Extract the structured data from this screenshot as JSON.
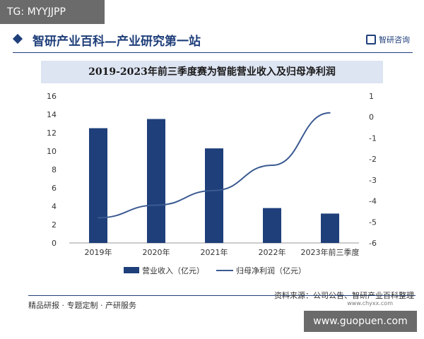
{
  "badge": {
    "tg": "TG: MYYJJPP"
  },
  "header": {
    "title": "智研产业百科—产业研究第一站",
    "brand": "智研咨询"
  },
  "colors": {
    "bar": "#1f3f7a",
    "line": "#3b5a91",
    "accent": "#1f3f7a"
  },
  "chart_data": {
    "type": "bar",
    "title": "2019-2023年前三季度赛为智能营业收入及归母净利润",
    "categories": [
      "2019年",
      "2020年",
      "2021年",
      "2022年",
      "2023年前三季度"
    ],
    "series": [
      {
        "name": "营业收入（亿元）",
        "type": "bar",
        "axis": "left",
        "values": [
          12.5,
          13.5,
          10.3,
          3.8,
          3.2
        ]
      },
      {
        "name": "归母净利润（亿元）",
        "type": "line",
        "axis": "right",
        "values": [
          -4.8,
          -4.2,
          -3.5,
          -2.3,
          0.2
        ]
      }
    ],
    "y_left": {
      "ylim": [
        0,
        16
      ],
      "ticks": [
        "0",
        "2",
        "4",
        "6",
        "8",
        "10",
        "12",
        "14",
        "16"
      ]
    },
    "y_right": {
      "ylim": [
        -6,
        1
      ],
      "ticks": [
        "-6",
        "-5",
        "-4",
        "-3",
        "-2",
        "-1",
        "0",
        "1"
      ]
    },
    "legend": "bottom"
  },
  "footer": {
    "left": "精品研报 · 专题定制 · 产研服务",
    "source": "资料来源：公司公告、智研产业百科整理",
    "url": "www.chyxx.com"
  },
  "watermark": "www.guopuen.com"
}
